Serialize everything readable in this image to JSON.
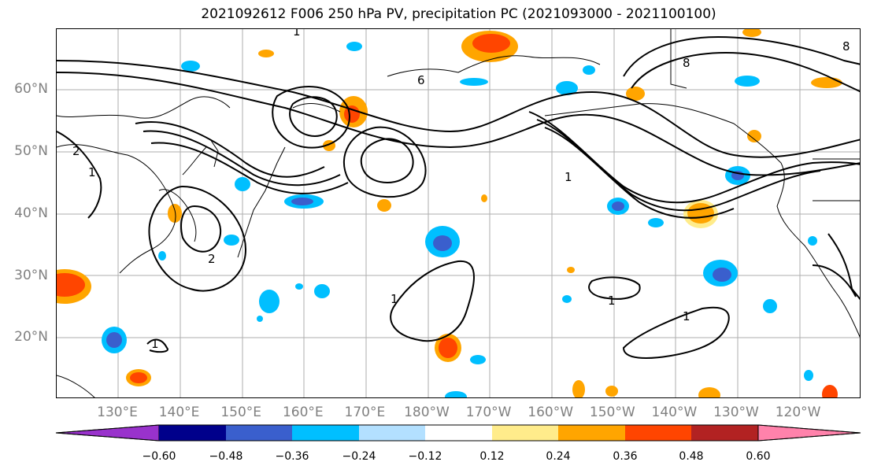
{
  "title": "2021092612 F006 250 hPa PV, precipitation PC (2021093000 - 2021100100)",
  "lat_labels": [
    "60°N",
    "50°N",
    "40°N",
    "30°N",
    "20°N"
  ],
  "lon_labels": [
    "130°E",
    "140°E",
    "150°E",
    "160°E",
    "170°E",
    "180°W",
    "170°W",
    "160°W",
    "150°W",
    "140°W",
    "130°W",
    "120°W"
  ],
  "colorbar": {
    "colors": [
      "#9932cc",
      "#00008b",
      "#3a5fcd",
      "#00bfff",
      "#b3e0ff",
      "#ffffff",
      "#ffec8b",
      "#ffa500",
      "#ff4500",
      "#b22222",
      "#ff82ab"
    ],
    "ticks": [
      "−0.60",
      "−0.48",
      "−0.36",
      "−0.24",
      "−0.12",
      "0.12",
      "0.24",
      "0.36",
      "0.48",
      "0.60"
    ]
  },
  "contour_labels": [
    "1",
    "1",
    "1",
    "1",
    "1",
    "2",
    "2",
    "6",
    "8",
    "8",
    "1",
    "1"
  ]
}
